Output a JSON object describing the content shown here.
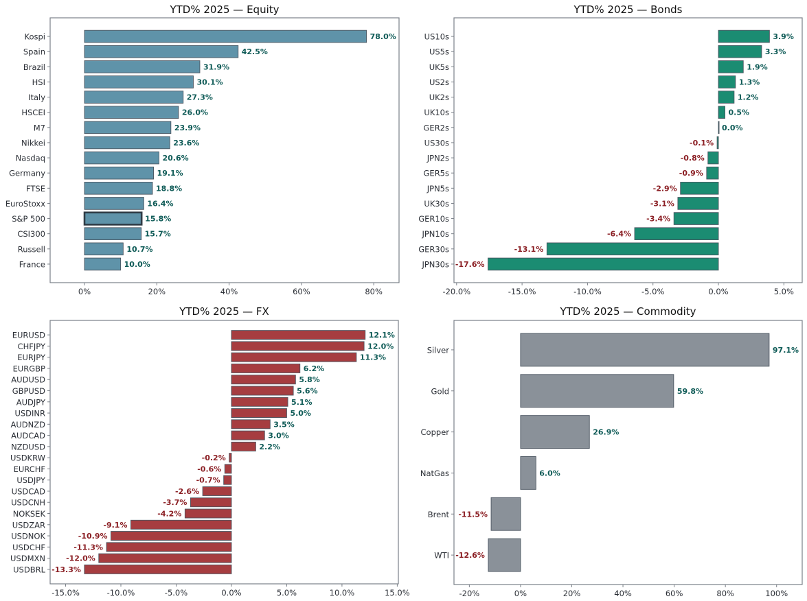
{
  "colors": {
    "positive_label": "#0f5b57",
    "negative_label": "#8b1f24",
    "highlight_label": "#b22222",
    "axis_text": "#2b2f36"
  },
  "chart_data": [
    {
      "id": "equity",
      "type": "bar",
      "orientation": "horizontal",
      "title": "YTD% 2025 —  Equity",
      "xlabel": "",
      "ylabel": "",
      "categories": [
        "Kospi",
        "Spain",
        "Brazil",
        "HSI",
        "Italy",
        "HSCEI",
        "M7",
        "Nikkei",
        "Nasdaq",
        "Germany",
        "FTSE",
        "EuroStoxx",
        "S&P 500",
        "CSI300",
        "Russell",
        "France"
      ],
      "values": [
        78.0,
        42.5,
        31.9,
        30.1,
        27.3,
        26.0,
        23.9,
        23.6,
        20.6,
        19.1,
        18.8,
        16.4,
        15.8,
        15.7,
        10.7,
        10.0
      ],
      "value_labels": [
        "78.0%",
        "42.5%",
        "31.9%",
        "30.1%",
        "27.3%",
        "26.0%",
        "23.9%",
        "23.6%",
        "20.6%",
        "19.1%",
        "18.8%",
        "16.4%",
        "15.8%",
        "15.7%",
        "10.7%",
        "10.0%"
      ],
      "highlight": "S&P 500",
      "bar_color": "#5f93a9",
      "xlim": [
        -9.5,
        87
      ],
      "xticks": [
        0,
        20,
        40,
        60,
        80
      ],
      "xtick_labels": [
        "0%",
        "20%",
        "40%",
        "60%",
        "80%"
      ],
      "grid": false
    },
    {
      "id": "bonds",
      "type": "bar",
      "orientation": "horizontal",
      "title": "YTD% 2025 —  Bonds",
      "xlabel": "",
      "ylabel": "",
      "categories": [
        "US10s",
        "US5s",
        "UK5s",
        "US2s",
        "UK2s",
        "UK10s",
        "GER2s",
        "US30s",
        "JPN2s",
        "GER5s",
        "JPN5s",
        "UK30s",
        "GER10s",
        "JPN10s",
        "GER30s",
        "JPN30s"
      ],
      "values": [
        3.9,
        3.3,
        1.9,
        1.3,
        1.2,
        0.5,
        0.0,
        -0.1,
        -0.8,
        -0.9,
        -2.9,
        -3.1,
        -3.4,
        -6.4,
        -13.1,
        -17.6
      ],
      "value_labels": [
        "3.9%",
        "3.3%",
        "1.9%",
        "1.3%",
        "1.2%",
        "0.5%",
        "0.0%",
        "-0.1%",
        "-0.8%",
        "-0.9%",
        "-2.9%",
        "-3.1%",
        "-3.4%",
        "-6.4%",
        "-13.1%",
        "-17.6%"
      ],
      "bar_color": "#1b8c72",
      "xlim": [
        -20.2,
        6.4
      ],
      "xticks": [
        -20,
        -15,
        -10,
        -5,
        0,
        5
      ],
      "xtick_labels": [
        "-20.0%",
        "-15.0%",
        "-10.0%",
        "-5.0%",
        "0.0%",
        "5.0%"
      ],
      "grid": false
    },
    {
      "id": "fx",
      "type": "bar",
      "orientation": "horizontal",
      "title": "YTD% 2025 —  FX",
      "xlabel": "",
      "ylabel": "",
      "categories": [
        "EURUSD",
        "CHFJPY",
        "EURJPY",
        "EURGBP",
        "AUDUSD",
        "GBPUSD",
        "AUDJPY",
        "USDINR",
        "AUDNZD",
        "AUDCAD",
        "NZDUSD",
        "USDKRW",
        "EURCHF",
        "USDJPY",
        "USDCAD",
        "USDCNH",
        "NOKSEK",
        "USDZAR",
        "USDNOK",
        "USDCHF",
        "USDMXN",
        "USDBRL"
      ],
      "values": [
        12.1,
        12.0,
        11.3,
        6.2,
        5.8,
        5.6,
        5.1,
        5.0,
        3.5,
        3.0,
        2.2,
        -0.2,
        -0.6,
        -0.7,
        -2.6,
        -3.7,
        -4.2,
        -9.1,
        -10.9,
        -11.3,
        -12.0,
        -13.3
      ],
      "value_labels": [
        "12.1%",
        "12.0%",
        "11.3%",
        "6.2%",
        "5.8%",
        "5.6%",
        "5.1%",
        "5.0%",
        "3.5%",
        "3.0%",
        "2.2%",
        "-0.2%",
        "-0.6%",
        "-0.7%",
        "-2.6%",
        "-3.7%",
        "-4.2%",
        "-9.1%",
        "-10.9%",
        "-11.3%",
        "-12.0%",
        "-13.3%"
      ],
      "bar_color": "#a63d40",
      "xlim": [
        -16.4,
        15.1
      ],
      "xticks": [
        -15,
        -10,
        -5,
        0,
        5,
        10,
        15
      ],
      "xtick_labels": [
        "-15.0%",
        "-10.0%",
        "-5.0%",
        "0.0%",
        "5.0%",
        "10.0%",
        "15.0%"
      ],
      "grid": false
    },
    {
      "id": "commodity",
      "type": "bar",
      "orientation": "horizontal",
      "title": "YTD% 2025 —  Commodity",
      "xlabel": "",
      "ylabel": "",
      "categories": [
        "Silver",
        "Gold",
        "Copper",
        "NatGas",
        "Brent",
        "WTI"
      ],
      "values": [
        97.1,
        59.8,
        26.9,
        6.0,
        -11.5,
        -12.6
      ],
      "value_labels": [
        "97.1%",
        "59.8%",
        "26.9%",
        "6.0%",
        "-11.5%",
        "-12.6%"
      ],
      "bar_color": "#8a9199",
      "xlim": [
        -26,
        110
      ],
      "xticks": [
        -20,
        0,
        20,
        40,
        60,
        80,
        100
      ],
      "xtick_labels": [
        "-20%",
        "0%",
        "20%",
        "40%",
        "60%",
        "80%",
        "100%"
      ],
      "grid": false
    }
  ]
}
